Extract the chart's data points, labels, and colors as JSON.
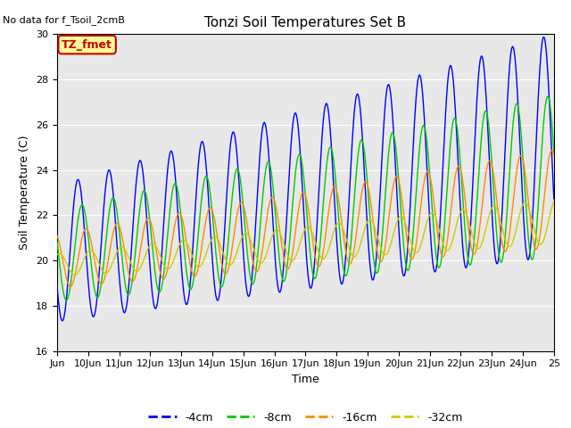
{
  "title": "Tonzi Soil Temperatures Set B",
  "xlabel": "Time",
  "ylabel": "Soil Temperature (C)",
  "no_data_label": "No data for f_Tsoil_2cmB",
  "tz_fmet_label": "TZ_fmet",
  "ylim": [
    16,
    30
  ],
  "xlim": [
    9,
    25
  ],
  "x_tick_labels": [
    "Jun",
    "10Jun",
    "11Jun",
    "12Jun",
    "13Jun",
    "14Jun",
    "15Jun",
    "16Jun",
    "17Jun",
    "18Jun",
    "19Jun",
    "20Jun",
    "21Jun",
    "22Jun",
    "23Jun",
    "24Jun",
    "25"
  ],
  "x_tick_positions": [
    9,
    10,
    11,
    12,
    13,
    14,
    15,
    16,
    17,
    18,
    19,
    20,
    21,
    22,
    23,
    24,
    25
  ],
  "y_ticks": [
    16,
    18,
    20,
    22,
    24,
    26,
    28,
    30
  ],
  "colors": {
    "4cm": "#0000FF",
    "8cm": "#00CC00",
    "16cm": "#FF8C00",
    "32cm": "#CCCC00",
    "tz_fmet_bg": "#FFFF99",
    "tz_fmet_border": "#CC0000",
    "tz_fmet_text": "#CC0000"
  },
  "legend_labels": [
    "-4cm",
    "-8cm",
    "-16cm",
    "-32cm"
  ],
  "plot_bg": "#E8E8E8",
  "fig_bg": "#FFFFFF",
  "grid_color": "#FFFFFF",
  "linewidth": 1.0,
  "title_fontsize": 11,
  "label_fontsize": 9,
  "tick_fontsize": 8,
  "legend_fontsize": 9
}
